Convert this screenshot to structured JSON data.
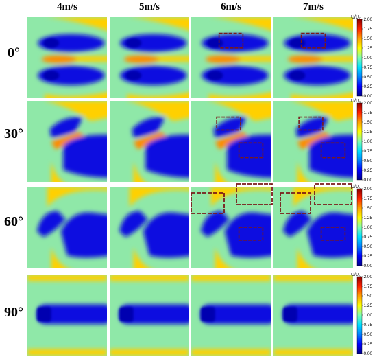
{
  "columns": [
    {
      "id": "v4",
      "label": "4m/s"
    },
    {
      "id": "v5",
      "label": "5m/s"
    },
    {
      "id": "v6",
      "label": "6m/s"
    },
    {
      "id": "v7",
      "label": "7m/s"
    }
  ],
  "rows": [
    {
      "id": "a0",
      "label": "0°"
    },
    {
      "id": "a30",
      "label": "30°"
    },
    {
      "id": "a60",
      "label": "60°"
    },
    {
      "id": "a90",
      "label": "90°"
    }
  ],
  "colorbar": {
    "unit_label": "U/U₀",
    "ticks": [
      "0.00",
      "0.25",
      "0.50",
      "0.75",
      "1.00",
      "1.25",
      "1.50",
      "1.75",
      "2.00"
    ],
    "min": 0,
    "max": 2,
    "colors": [
      "#00008b",
      "#0000ff",
      "#0080ff",
      "#00e0ff",
      "#7fffaf",
      "#ffff00",
      "#ffa000",
      "#ff2000",
      "#8b0000"
    ]
  },
  "field_colors": {
    "freestream": "#8fe8a8",
    "wake": "#1010e0",
    "wake_core": "#0000b0",
    "accel": "#ffd000",
    "accel_strong": "#ff8a00",
    "box_outline": "#7a1a1a"
  }
}
